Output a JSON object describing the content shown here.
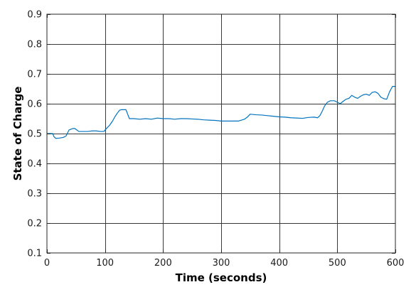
{
  "chart_data": {
    "type": "line",
    "title": "",
    "xlabel": "Time (seconds)",
    "ylabel": "State of Charge",
    "xlim": [
      0,
      600
    ],
    "ylim": [
      0.1,
      0.9
    ],
    "xticks": [
      0,
      100,
      200,
      300,
      400,
      500,
      600
    ],
    "yticks": [
      0.1,
      0.2,
      0.3,
      0.4,
      0.5,
      0.6,
      0.7,
      0.8,
      0.9
    ],
    "xtick_labels": [
      "0",
      "100",
      "200",
      "300",
      "400",
      "500",
      "600"
    ],
    "ytick_labels": [
      "0.1",
      "0.2",
      "0.3",
      "0.4",
      "0.5",
      "0.6",
      "0.7",
      "0.8",
      "0.9"
    ],
    "grid": true,
    "line_color": "#0072BD",
    "series": [
      {
        "x": [
          0,
          10,
          12,
          15,
          22,
          28,
          33,
          38,
          45,
          48,
          55,
          62,
          70,
          78,
          85,
          92,
          98,
          103,
          108,
          113,
          117,
          121,
          125,
          128,
          132,
          136,
          139,
          142,
          150,
          160,
          170,
          180,
          190,
          200,
          210,
          220,
          230,
          240,
          250,
          260,
          270,
          280,
          290,
          300,
          310,
          320,
          330,
          340,
          345,
          350,
          360,
          370,
          380,
          390,
          400,
          410,
          420,
          430,
          440,
          450,
          460,
          466,
          470,
          474,
          478,
          483,
          488,
          495,
          500,
          505,
          510,
          515,
          520,
          525,
          530,
          535,
          540,
          545,
          550,
          555,
          560,
          565,
          570,
          575,
          580,
          585,
          590,
          595,
          600
        ],
        "y": [
          0.5,
          0.5,
          0.49,
          0.484,
          0.485,
          0.487,
          0.492,
          0.512,
          0.517,
          0.517,
          0.507,
          0.507,
          0.507,
          0.509,
          0.509,
          0.507,
          0.507,
          0.518,
          0.528,
          0.542,
          0.556,
          0.568,
          0.578,
          0.58,
          0.58,
          0.58,
          0.565,
          0.55,
          0.55,
          0.548,
          0.55,
          0.548,
          0.552,
          0.55,
          0.55,
          0.548,
          0.55,
          0.55,
          0.549,
          0.548,
          0.546,
          0.545,
          0.544,
          0.542,
          0.542,
          0.542,
          0.542,
          0.548,
          0.555,
          0.565,
          0.563,
          0.562,
          0.56,
          0.558,
          0.556,
          0.555,
          0.553,
          0.552,
          0.551,
          0.554,
          0.555,
          0.553,
          0.56,
          0.575,
          0.592,
          0.605,
          0.61,
          0.61,
          0.605,
          0.6,
          0.608,
          0.615,
          0.618,
          0.628,
          0.622,
          0.618,
          0.625,
          0.63,
          0.632,
          0.628,
          0.638,
          0.64,
          0.635,
          0.622,
          0.617,
          0.615,
          0.64,
          0.658,
          0.658
        ]
      }
    ]
  }
}
